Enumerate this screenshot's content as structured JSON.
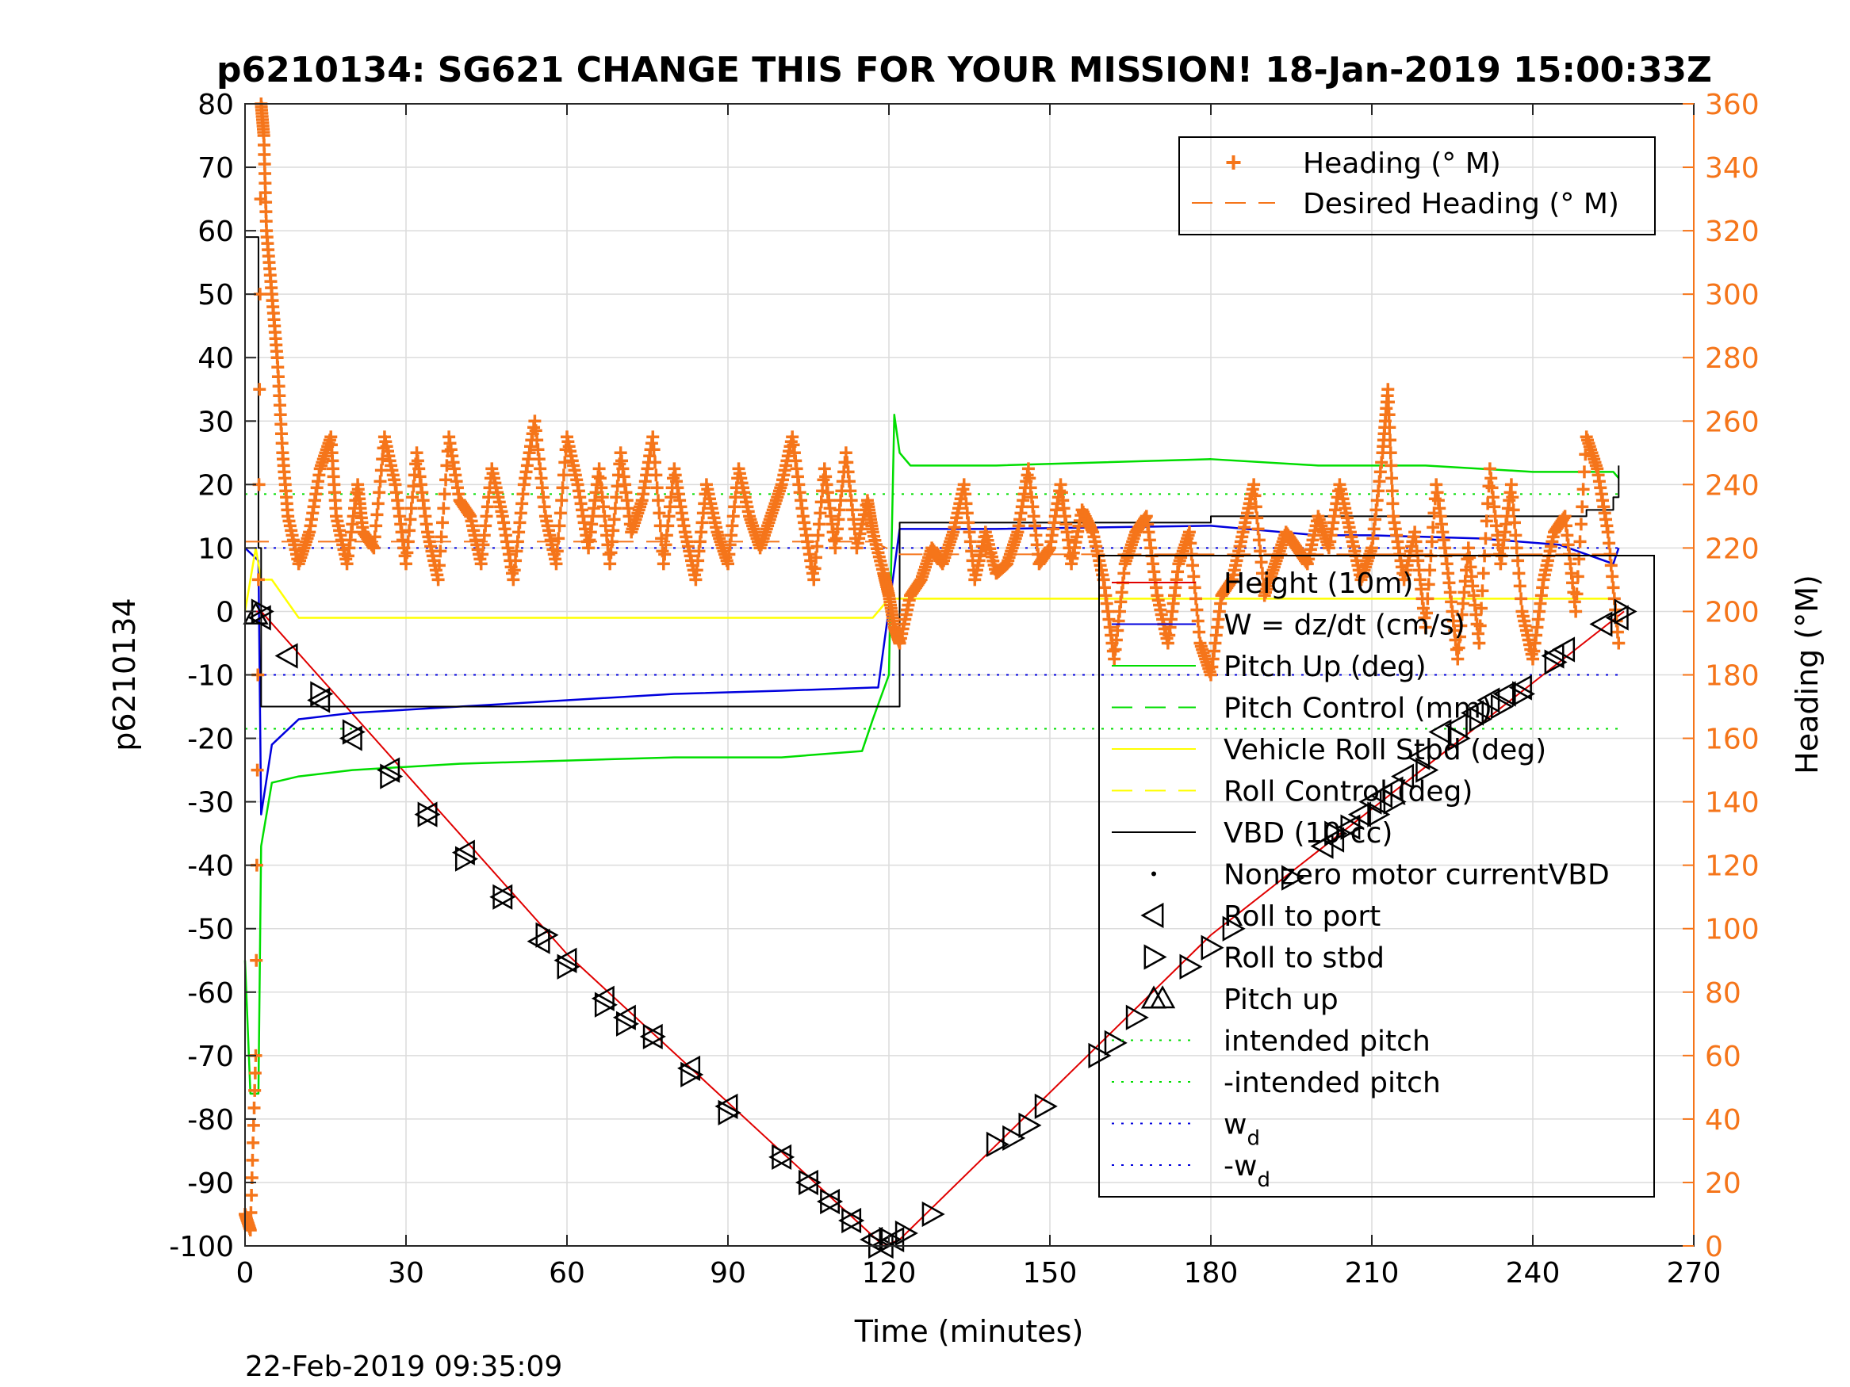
{
  "chart_data": {
    "type": "line",
    "title": "p6210134: SG621 CHANGE THIS FOR YOUR MISSION! 18-Jan-2019 15:00:33Z",
    "xlabel": "Time (minutes)",
    "ylabel_left": "p6210134",
    "ylabel_right": "Heading (°M)",
    "xlim": [
      0,
      270
    ],
    "ylim_left": [
      -100,
      80
    ],
    "ylim_right": [
      0,
      360
    ],
    "xticks": [
      0,
      30,
      60,
      90,
      120,
      150,
      180,
      210,
      240,
      270
    ],
    "yticks_left": [
      -100,
      -90,
      -80,
      -70,
      -60,
      -50,
      -40,
      -30,
      -20,
      -10,
      0,
      10,
      20,
      30,
      40,
      50,
      60,
      70,
      80
    ],
    "yticks_right": [
      0,
      20,
      40,
      60,
      80,
      100,
      120,
      140,
      160,
      180,
      200,
      220,
      240,
      260,
      280,
      300,
      320,
      340,
      360
    ],
    "grid": true,
    "footer": "22-Feb-2019 09:35:09",
    "colors": {
      "heading": "#f5751a",
      "height": "#e00000",
      "w": "#0000dd",
      "pitch": "#00dd00",
      "roll": "#ffff00",
      "vbd": "#000000",
      "right_axis": "#f5751a"
    },
    "legend_right_axis": [
      {
        "label": "Heading (° M)",
        "style": "plus"
      },
      {
        "label": "Desired Heading (° M)",
        "style": "dashed"
      }
    ],
    "legend_left_axis": [
      {
        "label": "Height (10m)",
        "style": "solid"
      },
      {
        "label": "W = dz/dt (cm/s)",
        "style": "solid"
      },
      {
        "label": "Pitch Up (deg)",
        "style": "solid"
      },
      {
        "label": "Pitch Control (mm)",
        "style": "dashed"
      },
      {
        "label": "Vehicle Roll Stbd (deg)",
        "style": "solid"
      },
      {
        "label": "Roll Control (deg)",
        "style": "dashed"
      },
      {
        "label": "VBD (10 cc)",
        "style": "solid"
      },
      {
        "label": "Nonzero motor currentVBD",
        "style": "dot"
      },
      {
        "label": "Roll to port",
        "style": "tri-left"
      },
      {
        "label": "Roll to stbd",
        "style": "tri-right"
      },
      {
        "label": "Pitch up",
        "style": "tri-up"
      },
      {
        "label": "intended pitch",
        "style": "dotted"
      },
      {
        "label": "-intended pitch",
        "style": "dotted"
      },
      {
        "label": "w",
        "sub": "d",
        "style": "dotted"
      },
      {
        "label": "-w",
        "sub": "d",
        "style": "dotted"
      }
    ],
    "series": [
      {
        "name": "Height (10m)",
        "axis": "left",
        "x": [
          0,
          3,
          60,
          119,
          122,
          180,
          257
        ],
        "y": [
          0,
          0,
          -54,
          -100,
          -99,
          -51,
          0
        ]
      },
      {
        "name": "W = dz/dt (cm/s)",
        "axis": "left",
        "x": [
          0,
          2.5,
          3,
          5,
          10,
          20,
          40,
          60,
          80,
          100,
          117,
          118,
          122,
          140,
          180,
          200,
          210,
          230,
          245,
          255,
          256
        ],
        "y": [
          10,
          8,
          -32,
          -21,
          -17,
          -16,
          -15,
          -14,
          -13,
          -12.5,
          -12,
          -12,
          13,
          13,
          13.5,
          12,
          12,
          11.5,
          10.5,
          7.5,
          10
        ]
      },
      {
        "name": "Pitch Up (deg)",
        "axis": "left",
        "x": [
          0,
          1,
          2.5,
          3,
          5,
          10,
          20,
          40,
          60,
          80,
          100,
          115,
          117,
          120,
          121,
          122,
          124,
          140,
          180,
          200,
          220,
          240,
          250,
          255,
          256
        ],
        "y": [
          -55,
          -76,
          -76,
          -37,
          -27,
          -26,
          -25,
          -24,
          -23.5,
          -23,
          -23,
          -22,
          -17,
          -10,
          31,
          25,
          23,
          23,
          24,
          23,
          23,
          22,
          22,
          22,
          21
        ]
      },
      {
        "name": "Vehicle Roll Stbd (deg)",
        "axis": "left",
        "x": [
          0,
          2,
          3,
          5,
          10,
          60,
          117,
          120,
          122,
          140,
          180,
          220,
          256
        ],
        "y": [
          0,
          10,
          5,
          5,
          -1,
          -1,
          -1,
          2,
          2,
          2,
          2,
          2,
          2
        ]
      },
      {
        "name": "VBD (10 cc)",
        "axis": "left",
        "x": [
          0,
          2.5,
          3,
          117,
          122,
          180,
          245,
          250,
          255,
          256
        ],
        "y": [
          59,
          10,
          -15,
          -15,
          14,
          15,
          15,
          16,
          18,
          23
        ]
      },
      {
        "name": "intended pitch",
        "axis": "left",
        "x": [
          0,
          257
        ],
        "y": [
          18.5,
          18.5
        ]
      },
      {
        "name": "-intended pitch",
        "axis": "left",
        "x": [
          0,
          257
        ],
        "y": [
          -18.5,
          -18.5
        ]
      },
      {
        "name": "w_d",
        "axis": "left",
        "x": [
          0,
          257
        ],
        "y": [
          10,
          10
        ]
      },
      {
        "name": "-w_d",
        "axis": "left",
        "x": [
          0,
          257
        ],
        "y": [
          -10,
          -10
        ]
      },
      {
        "name": "Desired Heading (° M)",
        "axis": "right",
        "x": [
          0,
          117,
          122,
          257
        ],
        "y": [
          222,
          222,
          218,
          218
        ]
      },
      {
        "name": "Heading (° M)",
        "axis": "right",
        "x": [
          0,
          1,
          2,
          3,
          3.5,
          4,
          5,
          6,
          7,
          8,
          10,
          12,
          14,
          16,
          17,
          19,
          21,
          22,
          24,
          26,
          28,
          30,
          32,
          34,
          36,
          38,
          40,
          42,
          44,
          46,
          48,
          50,
          52,
          54,
          56,
          58,
          60,
          62,
          64,
          66,
          68,
          70,
          72,
          74,
          76,
          78,
          80,
          82,
          84,
          86,
          88,
          90,
          92,
          94,
          96,
          98,
          100,
          102,
          104,
          106,
          108,
          110,
          112,
          114,
          116,
          117,
          119,
          120,
          121,
          122,
          124,
          126,
          128,
          130,
          132,
          134,
          136,
          138,
          140,
          142,
          144,
          146,
          148,
          150,
          152,
          154,
          156,
          158,
          160,
          162,
          164,
          166,
          168,
          170,
          172,
          174,
          176,
          178,
          180,
          182,
          184,
          186,
          188,
          190,
          192,
          194,
          196,
          198,
          200,
          202,
          204,
          206,
          208,
          210,
          212,
          213,
          214,
          216,
          218,
          220,
          222,
          224,
          226,
          228,
          230,
          232,
          234,
          236,
          238,
          240,
          242,
          244,
          246,
          248,
          250,
          252,
          254,
          256
        ],
        "y": [
          10,
          5,
          60,
          360,
          350,
          320,
          300,
          280,
          250,
          230,
          215,
          225,
          245,
          255,
          230,
          215,
          240,
          225,
          220,
          255,
          240,
          215,
          250,
          225,
          210,
          255,
          235,
          230,
          215,
          245,
          230,
          210,
          240,
          260,
          230,
          215,
          255,
          240,
          220,
          245,
          215,
          250,
          225,
          235,
          255,
          215,
          245,
          225,
          210,
          240,
          225,
          215,
          245,
          230,
          220,
          230,
          240,
          255,
          230,
          210,
          245,
          220,
          250,
          220,
          235,
          225,
          212,
          205,
          195,
          190,
          205,
          210,
          220,
          215,
          225,
          240,
          210,
          225,
          212,
          215,
          225,
          245,
          215,
          220,
          240,
          215,
          232,
          225,
          210,
          185,
          215,
          225,
          230,
          205,
          190,
          215,
          225,
          190,
          180,
          205,
          210,
          225,
          240,
          205,
          215,
          225,
          220,
          215,
          230,
          220,
          240,
          225,
          210,
          220,
          250,
          270,
          230,
          210,
          225,
          195,
          240,
          215,
          185,
          220,
          190,
          245,
          215,
          240,
          200,
          185,
          210,
          225,
          230,
          200,
          255,
          245,
          225,
          190
        ]
      }
    ],
    "markers": [
      {
        "name": "Roll to port",
        "x": [
          3,
          8,
          14,
          20,
          27,
          34,
          41,
          48,
          55,
          60,
          67,
          71,
          76,
          83,
          90,
          100,
          105,
          109,
          113,
          117,
          119,
          121,
          201,
          203,
          206,
          208,
          210,
          212,
          214,
          216,
          219,
          223,
          226,
          229,
          232,
          235,
          238,
          244,
          246,
          253,
          256
        ],
        "y": [
          -1,
          -7,
          -14,
          -20,
          -25,
          -32,
          -38,
          -45,
          -52,
          -55,
          -61,
          -64,
          -67,
          -72,
          -78,
          -86,
          -90,
          -93,
          -96,
          -99,
          -100,
          -99,
          -37,
          -36,
          -34,
          -32,
          -30,
          -29,
          -28,
          -26,
          -23,
          -19,
          -18,
          -16,
          -14,
          -13,
          -12,
          -7,
          -6,
          -2,
          -1
        ]
      },
      {
        "name": "Roll to stbd",
        "x": [
          3,
          14,
          20,
          27,
          34,
          41,
          48,
          56,
          60,
          67,
          71,
          76,
          83,
          90,
          100,
          105,
          109,
          113,
          118,
          120,
          123,
          128,
          140,
          143,
          146,
          149,
          159,
          162,
          166,
          176,
          180,
          184,
          195,
          203,
          206,
          211,
          214,
          220,
          226,
          230,
          234,
          238,
          244,
          257
        ],
        "y": [
          0,
          -13,
          -19,
          -26,
          -32,
          -39,
          -45,
          -51,
          -56,
          -62,
          -65,
          -67,
          -73,
          -79,
          -86,
          -90,
          -93,
          -96,
          -100,
          -99,
          -98,
          -95,
          -84,
          -83,
          -81,
          -78,
          -70,
          -68,
          -64,
          -56,
          -53,
          -50,
          -42,
          -35,
          -34,
          -32,
          -30,
          -25,
          -20,
          -17,
          -15,
          -13,
          -8,
          0
        ]
      },
      {
        "name": "Pitch up",
        "x": [
          2,
          171
        ],
        "y": [
          -0.5,
          -61
        ]
      }
    ]
  }
}
